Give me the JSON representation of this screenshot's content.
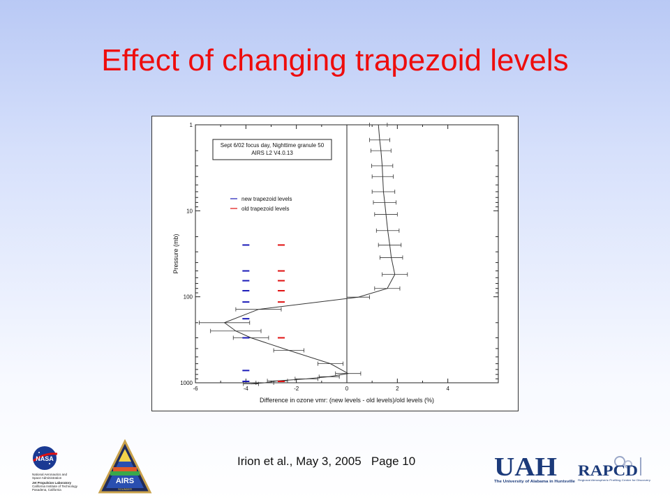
{
  "slide": {
    "title": "Effect of changing trapezoid levels",
    "footer": "Irion et al., May 3, 2005   Page 10"
  },
  "logos": {
    "nasa": {
      "icon": "nasa-meatball-icon",
      "text_lines": [
        "National Aeronautics and",
        "Space Administration",
        "Jet Propulsion Laboratory",
        "California Institute of Technology",
        "Pasadena, California"
      ]
    },
    "airs": {
      "icon": "airs-triangle-icon",
      "text": "AIRS",
      "subtext": "SOUNDER"
    },
    "uah": {
      "icon": "uah-logo-icon",
      "text": "UAH",
      "subtext": "The University of Alabama in Huntsville"
    },
    "rapcd": {
      "icon": "rapcd-logo-icon",
      "text": "RAPCD",
      "subtext": "Regional Atmospheric Profiling Center for Discovery"
    }
  },
  "colors": {
    "title": "#ee0d0d",
    "new_levels": "#1a1ab8",
    "old_levels": "#e01010",
    "profile": "#333333"
  },
  "chart_data": {
    "type": "line",
    "annotation": [
      "Sept 6/02 focus day, Nighttime granule 50",
      "AIRS L2 V4.0.13"
    ],
    "xlabel": "Difference in ozone vmr: (new levels - old levels)/old levels  (%)",
    "ylabel": "Pressure (mb)",
    "xlim": [
      -6,
      6
    ],
    "ylim": [
      1000,
      1
    ],
    "y_scale": "log",
    "x_ticks": [
      -6,
      -4,
      -2,
      0,
      2,
      4
    ],
    "y_ticks": [
      1,
      10,
      100,
      1000
    ],
    "legend": [
      {
        "label": "new trapezoid levels",
        "color": "#1a1ab8"
      },
      {
        "label": "old trapezoid levels",
        "color": "#e01010"
      }
    ],
    "profile": [
      {
        "p": 1.0,
        "x": 1.25,
        "err": 0.35
      },
      {
        "p": 1.5,
        "x": 1.3,
        "err": 0.4
      },
      {
        "p": 2.0,
        "x": 1.35,
        "err": 0.4
      },
      {
        "p": 3.0,
        "x": 1.4,
        "err": 0.42
      },
      {
        "p": 4.0,
        "x": 1.42,
        "err": 0.42
      },
      {
        "p": 6.0,
        "x": 1.45,
        "err": 0.45
      },
      {
        "p": 8.0,
        "x": 1.5,
        "err": 0.45
      },
      {
        "p": 11.0,
        "x": 1.55,
        "err": 0.45
      },
      {
        "p": 17.0,
        "x": 1.62,
        "err": 0.45
      },
      {
        "p": 25.0,
        "x": 1.7,
        "err": 0.45
      },
      {
        "p": 35.0,
        "x": 1.76,
        "err": 0.45
      },
      {
        "p": 55.0,
        "x": 1.9,
        "err": 0.5
      },
      {
        "p": 80.0,
        "x": 1.6,
        "err": 0.5
      },
      {
        "p": 101.0,
        "x": 0.45,
        "err": 0.45
      },
      {
        "p": 140.0,
        "x": -3.5,
        "err": 0.9
      },
      {
        "p": 200.0,
        "x": -4.85,
        "err": 1.0
      },
      {
        "p": 250.0,
        "x": -4.4,
        "err": 1.0
      },
      {
        "p": 300.0,
        "x": -3.8,
        "err": 0.7
      },
      {
        "p": 420.0,
        "x": -2.3,
        "err": 0.6
      },
      {
        "p": 600.0,
        "x": -0.65,
        "err": 0.5
      },
      {
        "p": 780.0,
        "x": 0.05,
        "err": 0.5
      },
      {
        "p": 850.0,
        "x": -0.7,
        "err": 0.4
      },
      {
        "p": 900.0,
        "x": -1.6,
        "err": 0.45
      },
      {
        "p": 950.0,
        "x": -2.75,
        "err": 0.4
      },
      {
        "p": 1000.0,
        "x": -3.25,
        "err": 0.35
      },
      {
        "p": 1030.0,
        "x": -3.8,
        "err": 0.3
      }
    ],
    "new_levels_p": [
      25,
      50,
      65,
      85,
      115,
      180,
      300,
      720,
      1080
    ],
    "old_levels_p": [
      25,
      50,
      65,
      85,
      115,
      300,
      1050
    ]
  }
}
